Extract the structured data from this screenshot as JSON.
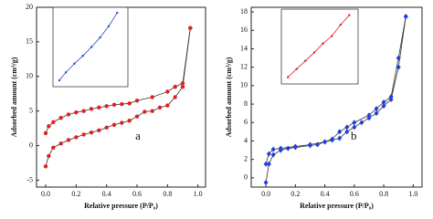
{
  "chart_data": [
    {
      "type": "line",
      "marker": "circle",
      "label": "a",
      "xlabel": "Relative pressure (P/P₀)",
      "ylabel": "Adsorbed amount (cm³/g)",
      "xlim": [
        -0.06,
        1.05
      ],
      "ylim": [
        -6,
        20
      ],
      "xticks": [
        {
          "value": 0,
          "label": "0.0"
        },
        {
          "value": 0.2,
          "label": "0.2"
        },
        {
          "value": 0.4,
          "label": "0.4"
        },
        {
          "value": 0.6,
          "label": "0.6"
        },
        {
          "value": 0.8,
          "label": "0.8"
        },
        {
          "value": 1,
          "label": "1.0"
        }
      ],
      "yticks": [
        -5,
        0,
        5,
        10,
        15,
        20
      ],
      "series": [
        {
          "color": "#e02020",
          "x": [
            0,
            0.02,
            0.05,
            0.1,
            0.15,
            0.2,
            0.25,
            0.3,
            0.35,
            0.4,
            0.45,
            0.5,
            0.55,
            0.6,
            0.65,
            0.7,
            0.75,
            0.8,
            0.85,
            0.9,
            0.95
          ],
          "values": [
            -3,
            -1.5,
            -0.3,
            0.3,
            0.8,
            1.2,
            1.6,
            1.9,
            2.2,
            2.6,
            3,
            3.3,
            3.6,
            4.2,
            4.9,
            5,
            5.5,
            5.8,
            7,
            8.5,
            17
          ]
        },
        {
          "color": "#e02020",
          "x": [
            0.95,
            0.9,
            0.85,
            0.8,
            0.7,
            0.6,
            0.55,
            0.5,
            0.45,
            0.4,
            0.35,
            0.3,
            0.25,
            0.2,
            0.15,
            0.1,
            0.05,
            0.02,
            0
          ],
          "values": [
            17,
            9,
            8.5,
            7.8,
            7,
            6.5,
            6.1,
            6,
            5.9,
            5.7,
            5.5,
            5.3,
            5,
            4.8,
            4.5,
            4,
            3.4,
            2.8,
            1.8
          ]
        }
      ],
      "inset": {
        "color": "#2050c0",
        "xlim": [
          0,
          0.35
        ],
        "ylim": [
          0,
          10
        ],
        "x": [
          0.03,
          0.06,
          0.1,
          0.14,
          0.18,
          0.22,
          0.26,
          0.3
        ],
        "values": [
          0.8,
          1.8,
          2.9,
          3.9,
          5,
          6.2,
          7.6,
          9.3
        ]
      }
    },
    {
      "type": "line",
      "marker": "diamond",
      "label": "b",
      "xlabel": "Relative pressure (P/P₀)",
      "ylabel": "Adsorbed amount (cm³/g)",
      "xlim": [
        -0.1,
        1.06
      ],
      "ylim": [
        -1,
        18.5
      ],
      "xticks": [
        {
          "value": 0,
          "label": "0.0"
        },
        {
          "value": 0.2,
          "label": "0.2"
        },
        {
          "value": 0.4,
          "label": "0.4"
        },
        {
          "value": 0.6,
          "label": "0.6"
        },
        {
          "value": 0.8,
          "label": "0.8"
        },
        {
          "value": 1,
          "label": "1.0"
        }
      ],
      "yticks": [
        0,
        2,
        4,
        6,
        8,
        10,
        12,
        14,
        16,
        18
      ],
      "series": [
        {
          "color": "#2040e0",
          "x": [
            0,
            0.02,
            0.05,
            0.1,
            0.15,
            0.2,
            0.3,
            0.35,
            0.4,
            0.45,
            0.5,
            0.55,
            0.6,
            0.65,
            0.7,
            0.75,
            0.8,
            0.85,
            0.9,
            0.95
          ],
          "values": [
            -0.5,
            1.5,
            2.5,
            3,
            3.2,
            3.3,
            3.5,
            3.6,
            3.9,
            4.1,
            4.3,
            5,
            5.5,
            6,
            6.5,
            7,
            7.8,
            8.5,
            12,
            17.5
          ]
        },
        {
          "color": "#2040e0",
          "x": [
            0.95,
            0.9,
            0.85,
            0.8,
            0.75,
            0.7,
            0.6,
            0.55,
            0.5,
            0.45,
            0.4,
            0.3,
            0.2,
            0.1,
            0.05,
            0.02,
            0
          ],
          "values": [
            17.5,
            13,
            8.8,
            8.2,
            7.5,
            6.8,
            6,
            5.5,
            5,
            4.2,
            3.9,
            3.6,
            3.4,
            3.2,
            3.1,
            2.6,
            1.5
          ]
        }
      ],
      "inset": {
        "color": "#e02020",
        "xlim": [
          0,
          0.35
        ],
        "ylim": [
          0,
          10
        ],
        "x": [
          0.03,
          0.07,
          0.11,
          0.15,
          0.19,
          0.23,
          0.27,
          0.31
        ],
        "values": [
          0.9,
          2,
          3.1,
          4.2,
          5.4,
          6.4,
          7.9,
          9.2
        ]
      }
    }
  ]
}
